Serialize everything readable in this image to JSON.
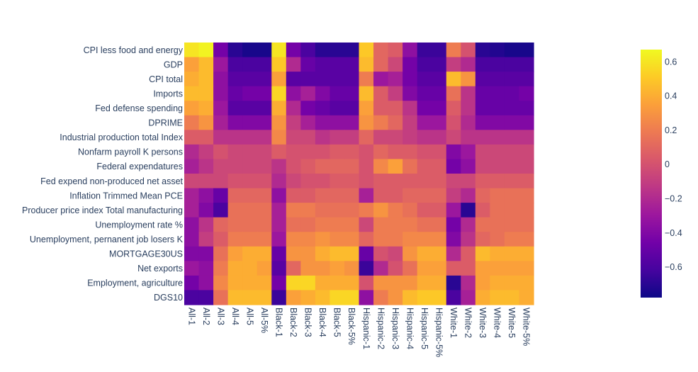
{
  "chart_data": {
    "type": "heatmap",
    "title": "",
    "xlabel": "",
    "ylabel": "",
    "x": [
      "All-1",
      "All-2",
      "All-3",
      "All-4",
      "All-5",
      "All-5%",
      "Black-1",
      "Black-2",
      "Black-3",
      "Black-4",
      "Black-5",
      "Black-5%",
      "Hispanic-1",
      "Hispanic-2",
      "Hispanic-3",
      "Hispanic-4",
      "Hispanic-5",
      "Hispanic-5%",
      "White-1",
      "White-2",
      "White-3",
      "White-4",
      "White-5",
      "White-5%"
    ],
    "y": [
      "CPI less food and energy",
      "GDP",
      "CPI total",
      "Imports",
      "Fed defense spending",
      "DPRIME",
      "Industrial production total Index",
      "Nonfarm payroll K persons",
      "Federal expendatures",
      "Fed expend non-produced net asset",
      "Inflation Trimmed Mean PCE",
      "Producer price index Total manufacturing",
      "Unemployment rate %",
      "Unemployment, pernanent job losers K",
      "MORTGAGE30US",
      "Net exports",
      "Employment, agriculture",
      "DGS10"
    ],
    "z": [
      [
        0.6,
        0.65,
        -0.45,
        -0.7,
        -0.75,
        -0.75,
        0.6,
        -0.45,
        -0.6,
        -0.7,
        -0.7,
        -0.7,
        0.5,
        0.1,
        0.05,
        -0.35,
        -0.65,
        -0.65,
        0.2,
        0.0,
        -0.7,
        -0.72,
        -0.75,
        -0.75
      ],
      [
        0.35,
        0.45,
        -0.3,
        -0.6,
        -0.6,
        -0.6,
        0.5,
        -0.2,
        -0.5,
        -0.55,
        -0.55,
        -0.55,
        0.45,
        0.1,
        -0.05,
        -0.45,
        -0.6,
        -0.6,
        -0.1,
        -0.2,
        -0.6,
        -0.6,
        -0.6,
        -0.6
      ],
      [
        0.4,
        0.45,
        -0.35,
        -0.55,
        -0.55,
        -0.55,
        0.35,
        -0.55,
        -0.55,
        -0.55,
        -0.55,
        -0.55,
        0.2,
        -0.3,
        -0.25,
        -0.45,
        -0.55,
        -0.55,
        0.45,
        0.3,
        -0.55,
        -0.55,
        -0.55,
        -0.55
      ],
      [
        0.45,
        0.45,
        -0.35,
        -0.5,
        -0.45,
        -0.45,
        0.55,
        -0.35,
        -0.25,
        -0.4,
        -0.5,
        -0.5,
        0.45,
        0.05,
        -0.1,
        -0.4,
        -0.5,
        -0.5,
        0.15,
        -0.15,
        -0.5,
        -0.5,
        -0.5,
        -0.45
      ],
      [
        0.35,
        0.4,
        -0.3,
        -0.55,
        -0.55,
        -0.55,
        0.4,
        -0.2,
        -0.45,
        -0.5,
        -0.55,
        -0.55,
        0.35,
        0.05,
        0.05,
        -0.15,
        -0.45,
        -0.45,
        0.05,
        -0.15,
        -0.5,
        -0.5,
        -0.5,
        -0.5
      ],
      [
        0.2,
        0.3,
        -0.25,
        -0.4,
        -0.4,
        -0.4,
        0.3,
        -0.1,
        -0.25,
        -0.35,
        -0.35,
        -0.35,
        0.3,
        0.2,
        0.1,
        -0.1,
        -0.3,
        -0.3,
        0.0,
        -0.2,
        -0.4,
        -0.4,
        -0.4,
        -0.4
      ],
      [
        0.05,
        0.05,
        -0.15,
        -0.15,
        -0.15,
        -0.15,
        0.25,
        -0.05,
        -0.05,
        -0.15,
        -0.1,
        -0.1,
        0.1,
        -0.05,
        -0.05,
        -0.1,
        -0.15,
        -0.15,
        -0.05,
        -0.15,
        -0.15,
        -0.15,
        -0.15,
        -0.15
      ],
      [
        -0.2,
        -0.1,
        0.0,
        -0.05,
        -0.05,
        -0.05,
        0.05,
        0.0,
        0.0,
        0.0,
        0.05,
        0.05,
        0.0,
        0.1,
        0.05,
        0.05,
        0.0,
        0.0,
        -0.4,
        -0.3,
        -0.05,
        -0.05,
        -0.05,
        -0.05
      ],
      [
        -0.25,
        -0.15,
        -0.05,
        -0.05,
        -0.05,
        -0.05,
        -0.15,
        0.0,
        0.05,
        0.1,
        0.1,
        0.1,
        0.0,
        0.25,
        0.35,
        0.15,
        0.05,
        0.05,
        -0.45,
        -0.35,
        -0.05,
        -0.05,
        -0.05,
        -0.05
      ],
      [
        -0.05,
        -0.05,
        -0.05,
        0.0,
        0.0,
        0.0,
        -0.2,
        -0.05,
        0.0,
        0.0,
        0.05,
        0.05,
        0.0,
        0.05,
        0.05,
        0.05,
        0.05,
        0.05,
        -0.05,
        -0.05,
        0.05,
        0.05,
        0.05,
        0.05
      ],
      [
        -0.25,
        -0.35,
        -0.5,
        0.1,
        0.1,
        0.1,
        -0.35,
        0.05,
        0.05,
        0.1,
        0.1,
        0.1,
        -0.25,
        0.05,
        0.05,
        0.1,
        0.1,
        0.1,
        -0.1,
        -0.2,
        0.1,
        0.15,
        0.15,
        0.15
      ],
      [
        -0.25,
        -0.4,
        -0.6,
        0.15,
        0.15,
        0.15,
        -0.25,
        0.2,
        0.2,
        0.15,
        0.15,
        0.15,
        0.2,
        0.3,
        0.2,
        0.15,
        0.05,
        0.05,
        -0.3,
        -0.7,
        0.05,
        0.15,
        0.15,
        0.15
      ],
      [
        -0.35,
        -0.15,
        0.1,
        0.15,
        0.15,
        0.15,
        -0.25,
        0.15,
        0.15,
        0.2,
        0.2,
        0.2,
        -0.05,
        0.2,
        0.2,
        0.2,
        0.15,
        0.15,
        -0.45,
        -0.2,
        0.15,
        0.15,
        0.15,
        0.15
      ],
      [
        -0.35,
        -0.1,
        0.05,
        0.2,
        0.2,
        0.2,
        -0.3,
        0.25,
        0.25,
        0.3,
        0.25,
        0.25,
        0.1,
        0.2,
        0.2,
        0.25,
        0.25,
        0.25,
        -0.4,
        -0.15,
        0.1,
        0.15,
        0.2,
        0.2
      ],
      [
        -0.4,
        -0.4,
        0.15,
        0.35,
        0.4,
        0.4,
        -0.5,
        0.3,
        0.3,
        0.4,
        0.45,
        0.45,
        -0.5,
        0.0,
        -0.05,
        0.3,
        0.4,
        0.4,
        -0.2,
        0.05,
        0.45,
        0.4,
        0.4,
        0.4
      ],
      [
        -0.3,
        -0.35,
        0.2,
        0.4,
        0.4,
        0.35,
        -0.55,
        0.1,
        0.3,
        0.3,
        0.35,
        0.3,
        -0.65,
        -0.2,
        0.0,
        0.15,
        0.35,
        0.35,
        0.05,
        0.05,
        0.35,
        0.35,
        0.35,
        0.35
      ],
      [
        -0.45,
        -0.35,
        0.25,
        0.4,
        0.4,
        0.4,
        -0.45,
        0.55,
        0.55,
        0.4,
        0.4,
        0.4,
        0.0,
        0.3,
        0.3,
        0.3,
        0.4,
        0.4,
        -0.7,
        -0.2,
        0.35,
        0.4,
        0.4,
        0.4
      ],
      [
        -0.6,
        -0.6,
        0.15,
        0.45,
        0.45,
        0.45,
        -0.65,
        0.35,
        0.4,
        0.45,
        0.55,
        0.55,
        -0.35,
        0.2,
        0.3,
        0.45,
        0.5,
        0.5,
        -0.6,
        -0.25,
        0.4,
        0.45,
        0.45,
        0.4
      ]
    ],
    "colorscale": "plasma",
    "zmin": -0.78,
    "zmax": 0.67,
    "colorbar_ticks": [
      0.6,
      0.4,
      0.2,
      0,
      -0.2,
      -0.4,
      -0.6
    ],
    "colorbar_tick_labels": [
      "0.6",
      "0.4",
      "0.2",
      "0",
      "−0.2",
      "−0.4",
      "−0.6"
    ],
    "grid": false,
    "legend": "colorbar-right"
  }
}
